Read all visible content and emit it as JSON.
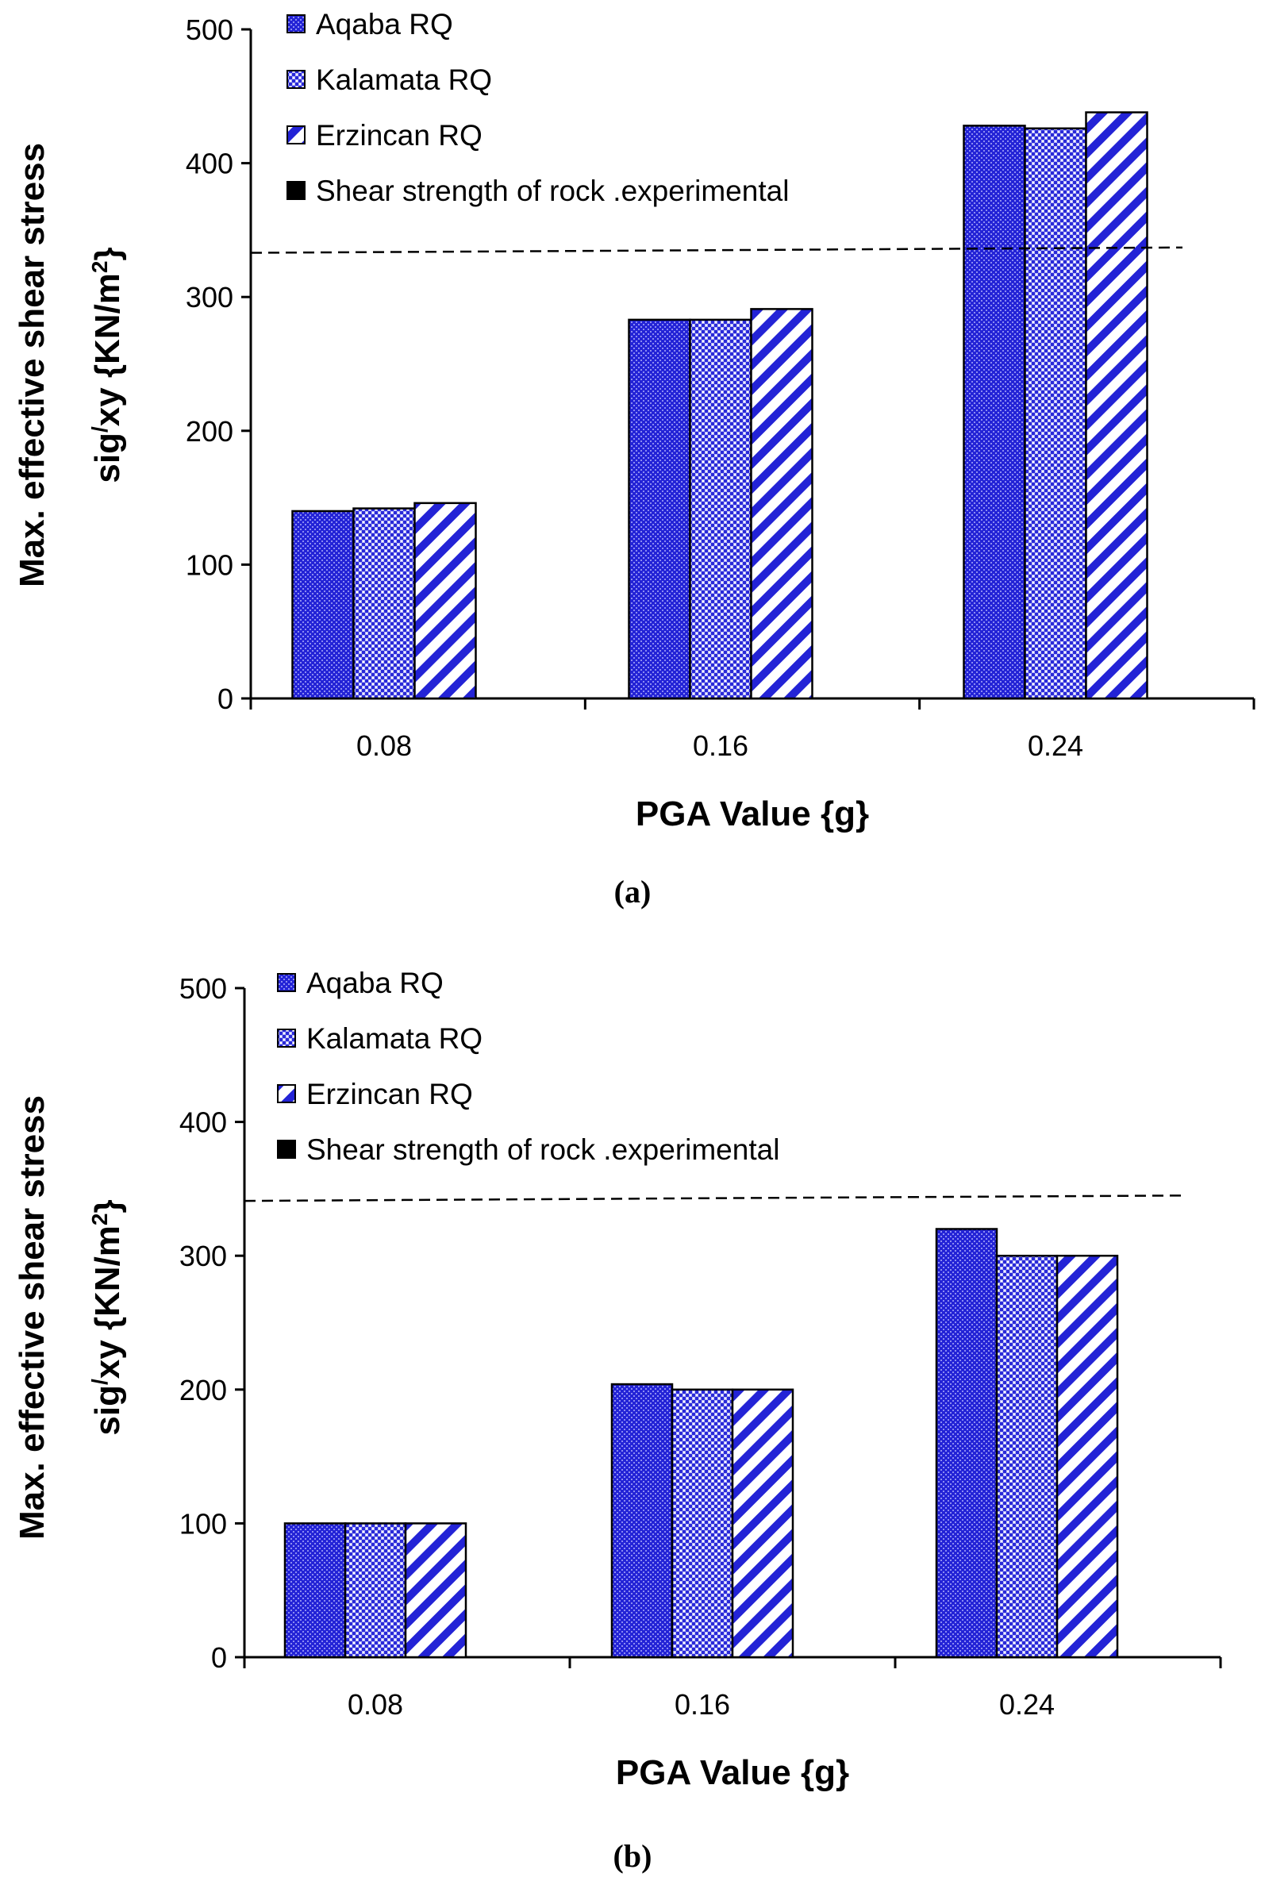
{
  "colors": {
    "bar_fill": "#2323d6",
    "bar_light": "#9a9af0",
    "hatch_white": "#ffffff",
    "axis": "#000000",
    "threshold": "#000000"
  },
  "chart_data": [
    {
      "type": "bar",
      "caption": "(a)",
      "xlabel": "PGA Value {g}",
      "ylabel_line1": "Max. effective  shear stress",
      "ylabel_line2_base": "sig",
      "ylabel_line2_sup": "/",
      "ylabel_line2_mid": "xy {KN/m",
      "ylabel_line2_sup2": "2",
      "ylabel_line2_end": "}",
      "categories": [
        "0.08",
        "0.16",
        "0.24"
      ],
      "ylim": [
        0,
        500
      ],
      "yticks": [
        "0",
        "100",
        "200",
        "300",
        "400",
        "500"
      ],
      "series": [
        {
          "name": "Aqaba RQ",
          "pattern": "dots",
          "values": [
            140,
            283,
            428
          ]
        },
        {
          "name": "Kalamata RQ",
          "pattern": "checker",
          "values": [
            142,
            283,
            426
          ]
        },
        {
          "name": "Erzincan RQ",
          "pattern": "diagonal",
          "values": [
            146,
            291,
            438
          ]
        }
      ],
      "threshold": {
        "name": "Shear strength of rock .experimental",
        "start_value": 333,
        "end_value": 337
      }
    },
    {
      "type": "bar",
      "caption": "(b)",
      "xlabel": "PGA Value {g}",
      "ylabel_line1": "Max. effective  shear stress",
      "ylabel_line2_base": "sig",
      "ylabel_line2_sup": "/",
      "ylabel_line2_mid": "xy {KN/m",
      "ylabel_line2_sup2": "2",
      "ylabel_line2_end": "}",
      "categories": [
        "0.08",
        "0.16",
        "0.24"
      ],
      "ylim": [
        0,
        500
      ],
      "yticks": [
        "0",
        "100",
        "200",
        "300",
        "400",
        "500"
      ],
      "series": [
        {
          "name": "Aqaba RQ",
          "pattern": "dots",
          "values": [
            100,
            204,
            320
          ]
        },
        {
          "name": "Kalamata RQ",
          "pattern": "checker",
          "values": [
            100,
            200,
            300
          ]
        },
        {
          "name": "Erzincan RQ",
          "pattern": "diagonal",
          "values": [
            100,
            200,
            300
          ]
        }
      ],
      "threshold": {
        "name": "Shear strength of rock .experimental",
        "start_value": 341,
        "end_value": 345
      }
    }
  ]
}
